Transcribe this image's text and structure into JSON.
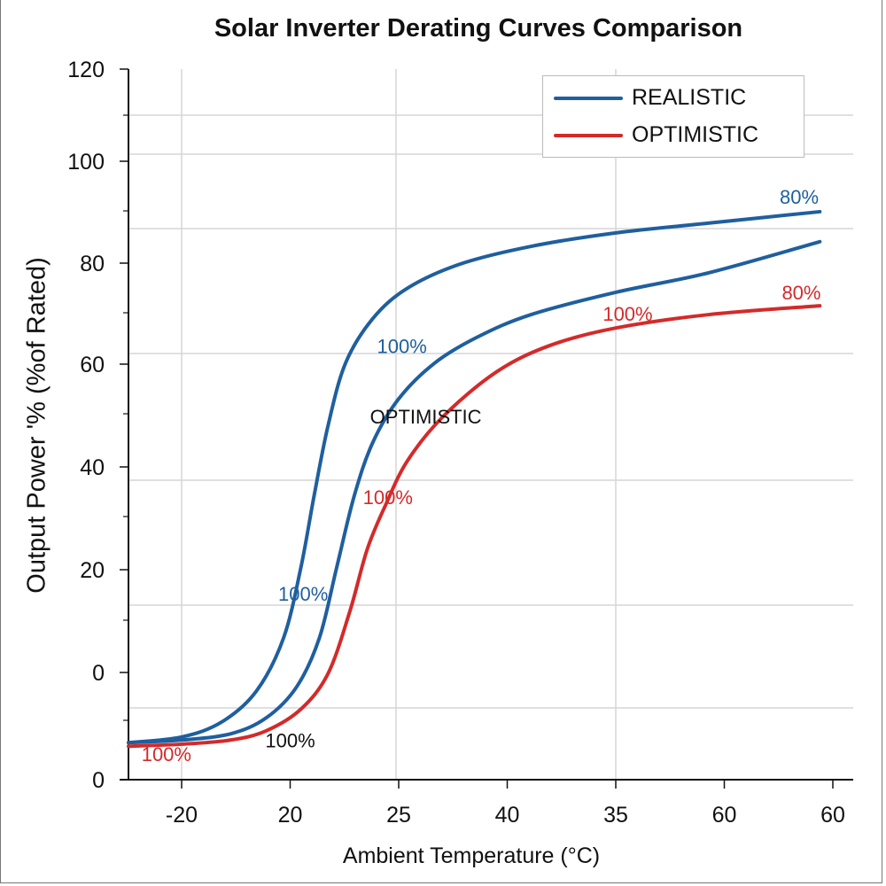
{
  "chart_data": {
    "type": "line",
    "title": "Solar Inverter Derating Curves Comparison",
    "xlabel": "Ambient Temperature (°C)",
    "ylabel": "Output Power '% (%of Rated)",
    "x_tick_labels": [
      "-20",
      "20",
      "25",
      "40",
      "35",
      "60",
      "60"
    ],
    "y_tick_labels": [
      "120",
      "100",
      "80",
      "60",
      "40",
      "20",
      "0",
      "0"
    ],
    "grid": true,
    "legend_position": "top-right",
    "legend": [
      {
        "label": "REALISTIC",
        "color": "#1f5f9e"
      },
      {
        "label": "OPTIMISTIC",
        "color": "#d42a2a"
      }
    ],
    "series": [
      {
        "legend": "REALISTIC",
        "color": "#1f5f9e",
        "x": [
          -0.49,
          0,
          0.37,
          0.69,
          0.94,
          1.1,
          1.22,
          1.35,
          1.51,
          1.76,
          2.08,
          2.57,
          3.22,
          4.0,
          4.86,
          5.88
        ],
        "y": [
          -13.4,
          -12.3,
          -9.4,
          -3.4,
          6.9,
          20.6,
          34.3,
          48.0,
          60.0,
          68.6,
          74.5,
          79.2,
          82.6,
          85.2,
          87.1,
          89.3
        ]
      },
      {
        "legend": "REALISTIC",
        "color": "#1f5f9e",
        "x": [
          -0.49,
          0,
          0.45,
          0.78,
          1.06,
          1.27,
          1.43,
          1.59,
          1.76,
          2.0,
          2.33,
          2.73,
          3.22,
          4.0,
          4.86,
          5.88
        ],
        "y": [
          -13.4,
          -12.9,
          -11.7,
          -8.6,
          -2.6,
          6.9,
          20.6,
          34.3,
          44.6,
          53.1,
          60.0,
          65.1,
          69.4,
          73.7,
          77.5,
          83.5
        ]
      },
      {
        "legend": "OPTIMISTIC",
        "color": "#d42a2a",
        "x": [
          -0.49,
          0,
          0.45,
          0.78,
          1.1,
          1.35,
          1.55,
          1.71,
          1.88,
          2.08,
          2.41,
          2.9,
          3.39,
          4.0,
          4.86,
          5.88
        ],
        "y": [
          -14.1,
          -13.7,
          -12.9,
          -11.1,
          -6.9,
          0,
          12.0,
          24.0,
          32.6,
          41.1,
          49.7,
          58.3,
          63.4,
          66.8,
          69.4,
          71.1
        ]
      }
    ],
    "annotations": [
      {
        "text": "100%",
        "color": "#1f5f9e",
        "x": 2.03,
        "y": 63.3
      },
      {
        "text": "OPTIMISTIC",
        "color": "#111111",
        "x": 2.25,
        "y": 49.7
      },
      {
        "text": "100%",
        "color": "#1f5f9e",
        "x": 1.12,
        "y": 15.4
      },
      {
        "text": "100%",
        "color": "#d42a2a",
        "x": 1.9,
        "y": 34.1
      },
      {
        "text": "100%",
        "color": "#111111",
        "x": 1.0,
        "y": -12.9
      },
      {
        "text": "100%",
        "color": "#d42a2a",
        "x": -0.14,
        "y": -15.6
      },
      {
        "text": "80%",
        "color": "#1f5f9e",
        "x": 5.69,
        "y": 92.2
      },
      {
        "text": "100%",
        "color": "#d42a2a",
        "x": 4.11,
        "y": 69.6
      },
      {
        "text": "80%",
        "color": "#d42a2a",
        "x": 5.71,
        "y": 73.7
      }
    ]
  }
}
